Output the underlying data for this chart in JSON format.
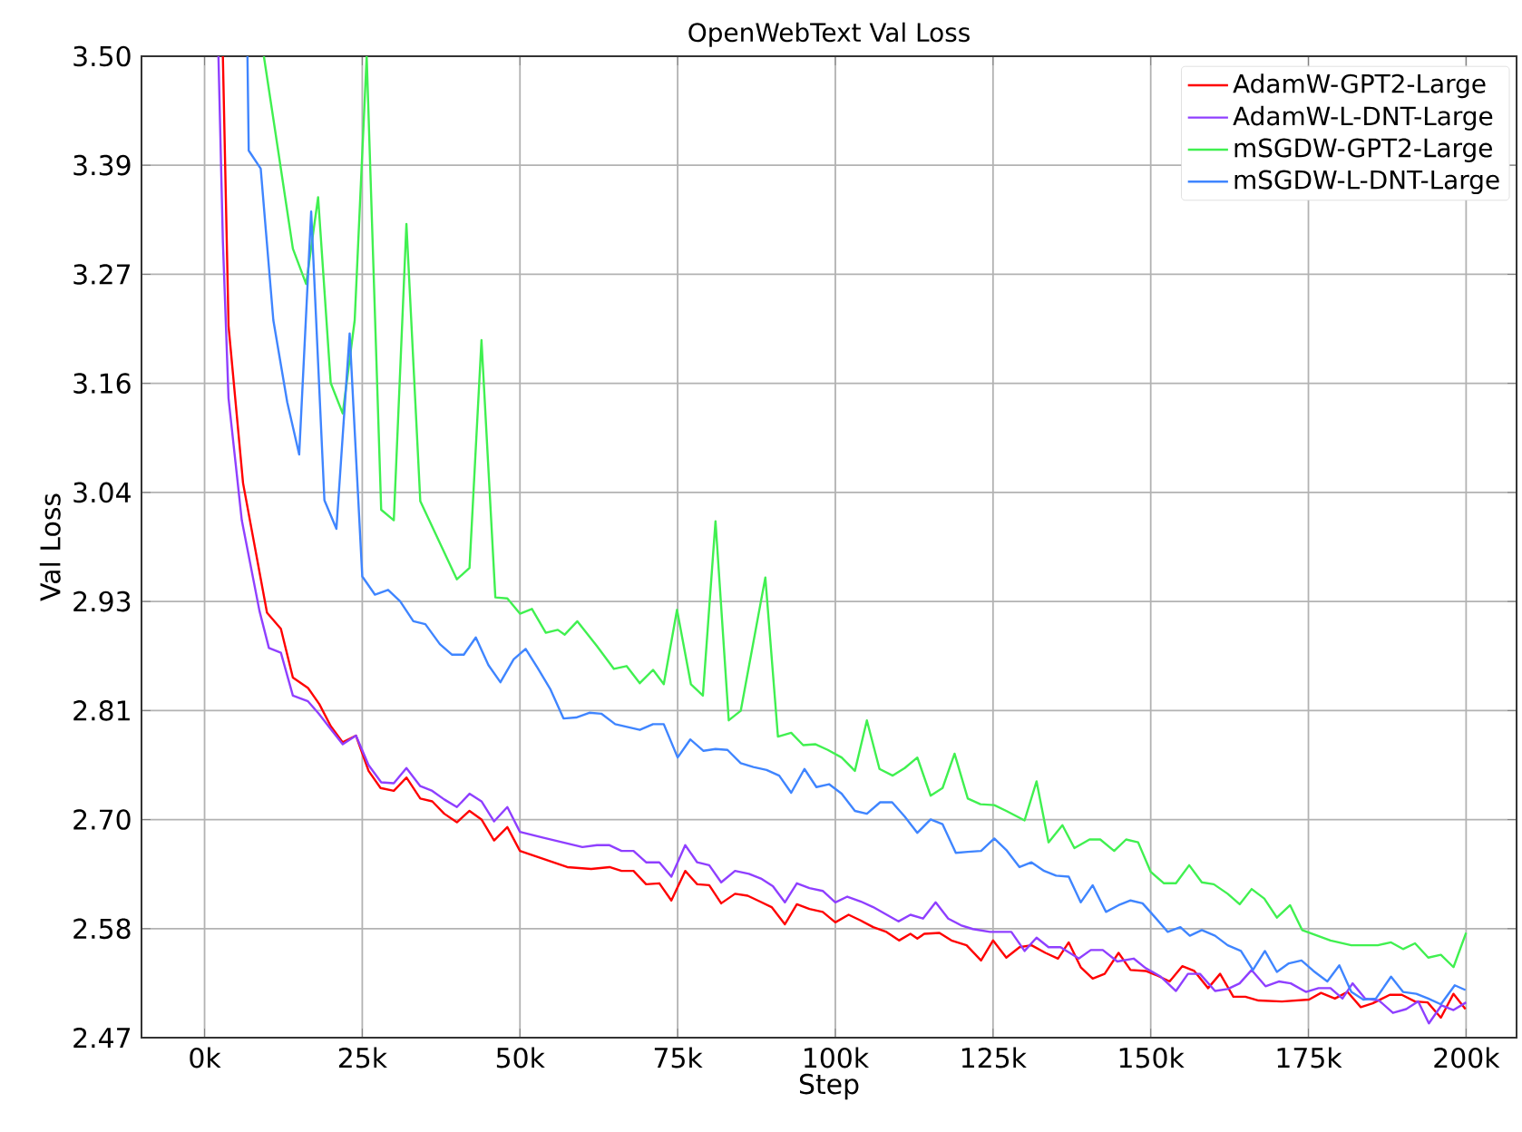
{
  "chart_data": {
    "type": "line",
    "title": "OpenWebText Val Loss",
    "xlabel": "Step",
    "ylabel": "Val Loss",
    "xlim": [
      -10000,
      208000
    ],
    "ylim": [
      2.47,
      3.5
    ],
    "xticks": [
      {
        "value": 0,
        "label": "0k"
      },
      {
        "value": 25000,
        "label": "25k"
      },
      {
        "value": 50000,
        "label": "50k"
      },
      {
        "value": 75000,
        "label": "75k"
      },
      {
        "value": 100000,
        "label": "100k"
      },
      {
        "value": 125000,
        "label": "125k"
      },
      {
        "value": 150000,
        "label": "150k"
      },
      {
        "value": 175000,
        "label": "175k"
      },
      {
        "value": 200000,
        "label": "200k"
      }
    ],
    "yticks": [
      2.47,
      {
        "value": 2.5844,
        "label": "2.58"
      },
      {
        "value": 2.6989,
        "label": "2.70"
      },
      {
        "value": 2.8133,
        "label": "2.81"
      },
      {
        "value": 2.9278,
        "label": "2.93"
      },
      {
        "value": 3.0422,
        "label": "3.04"
      },
      {
        "value": 3.1567,
        "label": "3.16"
      },
      {
        "value": 3.2711,
        "label": "3.27"
      },
      {
        "value": 3.3856,
        "label": "3.39"
      },
      {
        "value": 3.5,
        "label": "3.50"
      }
    ],
    "grid": true,
    "legend": "top right",
    "marker": "none",
    "line_style": "solid",
    "series": [
      {
        "name": "AdamW-GPT2-Large",
        "color": "#ff0000",
        "x": [
          2900,
          3800,
          6100,
          9900,
          12100,
          14000,
          16400,
          18200,
          20000,
          21900,
          24000,
          26000,
          27900,
          30000,
          32000,
          34200,
          36100,
          38000,
          40000,
          42000,
          43900,
          45900,
          48000,
          50000,
          57500,
          61300,
          64200,
          66100,
          68000,
          70000,
          72100,
          74000,
          76200,
          78100,
          80000,
          81900,
          84100,
          86100,
          88000,
          89900,
          92000,
          93900,
          95900,
          98000,
          100000,
          102100,
          104000,
          106000,
          108100,
          110100,
          111900,
          113000,
          114100,
          116500,
          118400,
          120800,
          123100,
          125000,
          127100,
          129200,
          131100,
          133300,
          135300,
          137000,
          138900,
          140800,
          142700,
          144900,
          146800,
          149200,
          151100,
          153000,
          155000,
          156900,
          159100,
          161000,
          163100,
          165000,
          167100,
          170800,
          175100,
          177000,
          179200,
          181200,
          183300,
          185200,
          187900,
          189800,
          191900,
          193900,
          196000,
          198000,
          199900
        ],
        "values": [
          3.5,
          3.217,
          3.052,
          2.916,
          2.899,
          2.848,
          2.837,
          2.82,
          2.797,
          2.78,
          2.787,
          2.75,
          2.732,
          2.729,
          2.743,
          2.721,
          2.718,
          2.705,
          2.696,
          2.708,
          2.699,
          2.677,
          2.691,
          2.666,
          2.649,
          2.647,
          2.649,
          2.645,
          2.645,
          2.631,
          2.632,
          2.614,
          2.645,
          2.631,
          2.63,
          2.611,
          2.621,
          2.619,
          2.613,
          2.607,
          2.589,
          2.61,
          2.605,
          2.602,
          2.591,
          2.599,
          2.593,
          2.586,
          2.581,
          2.572,
          2.579,
          2.574,
          2.579,
          2.58,
          2.572,
          2.567,
          2.551,
          2.572,
          2.554,
          2.565,
          2.567,
          2.559,
          2.553,
          2.57,
          2.544,
          2.532,
          2.537,
          2.559,
          2.541,
          2.54,
          2.535,
          2.529,
          2.545,
          2.54,
          2.522,
          2.537,
          2.513,
          2.513,
          2.509,
          2.508,
          2.51,
          2.517,
          2.511,
          2.518,
          2.502,
          2.506,
          2.515,
          2.515,
          2.508,
          2.507,
          2.491,
          2.516,
          2.5
        ]
      },
      {
        "name": "AdamW-L-DNT-Large",
        "color": "#8f3fff",
        "x": [
          2200,
          2900,
          3800,
          5900,
          8700,
          10200,
          12100,
          14000,
          16400,
          18100,
          20000,
          21900,
          24000,
          26000,
          28000,
          30000,
          32000,
          34200,
          36100,
          38000,
          40000,
          42000,
          43900,
          45900,
          48000,
          50000,
          53600,
          59900,
          62200,
          64200,
          66100,
          68000,
          70000,
          72100,
          74000,
          76200,
          78100,
          80000,
          81900,
          84100,
          86300,
          88200,
          90100,
          92000,
          93900,
          95900,
          98000,
          100000,
          101900,
          104000,
          106000,
          107900,
          110000,
          111900,
          113900,
          115900,
          117900,
          119900,
          121800,
          124500,
          127900,
          130000,
          131900,
          133800,
          135700,
          138600,
          140500,
          142400,
          144700,
          147300,
          149200,
          151600,
          154000,
          155900,
          157800,
          160200,
          162200,
          164100,
          166000,
          168200,
          170300,
          172200,
          174600,
          176600,
          178500,
          180400,
          182000,
          184000,
          186200,
          188400,
          190500,
          192400,
          194100,
          196100,
          198000,
          200000
        ],
        "values": [
          3.5,
          3.306,
          3.141,
          3.013,
          2.918,
          2.879,
          2.874,
          2.829,
          2.823,
          2.81,
          2.794,
          2.778,
          2.787,
          2.756,
          2.738,
          2.737,
          2.753,
          2.734,
          2.729,
          2.72,
          2.712,
          2.726,
          2.718,
          2.697,
          2.712,
          2.686,
          2.68,
          2.67,
          2.672,
          2.672,
          2.666,
          2.666,
          2.654,
          2.654,
          2.639,
          2.672,
          2.654,
          2.651,
          2.633,
          2.645,
          2.642,
          2.637,
          2.629,
          2.612,
          2.632,
          2.627,
          2.624,
          2.612,
          2.618,
          2.613,
          2.607,
          2.6,
          2.592,
          2.599,
          2.595,
          2.612,
          2.595,
          2.588,
          2.584,
          2.581,
          2.581,
          2.561,
          2.575,
          2.565,
          2.565,
          2.553,
          2.562,
          2.562,
          2.55,
          2.553,
          2.543,
          2.534,
          2.519,
          2.537,
          2.537,
          2.519,
          2.521,
          2.527,
          2.541,
          2.524,
          2.529,
          2.527,
          2.518,
          2.522,
          2.522,
          2.511,
          2.527,
          2.511,
          2.509,
          2.496,
          2.5,
          2.508,
          2.485,
          2.504,
          2.499,
          2.507
        ]
      },
      {
        "name": "mSGDW-GPT2-Large",
        "color": "#40f050",
        "x": [
          9400,
          10200,
          11800,
          14000,
          16100,
          18000,
          20000,
          21900,
          23800,
          25700,
          28000,
          30000,
          32000,
          34200,
          40000,
          42000,
          43900,
          46100,
          48000,
          50000,
          51900,
          54100,
          56000,
          57100,
          59100,
          62200,
          64900,
          66900,
          69000,
          71100,
          72800,
          74900,
          77100,
          79000,
          81000,
          83100,
          85000,
          88900,
          90900,
          93000,
          94900,
          96800,
          98800,
          101000,
          103100,
          105000,
          107000,
          109100,
          111000,
          113000,
          115100,
          117000,
          118900,
          121000,
          123000,
          125200,
          127100,
          130000,
          131900,
          133800,
          136000,
          137900,
          140300,
          142000,
          144200,
          146100,
          148000,
          150000,
          152100,
          154000,
          156100,
          158100,
          160000,
          162200,
          164100,
          166000,
          168000,
          170000,
          172100,
          174000,
          178500,
          181800,
          186000,
          188100,
          190000,
          191900,
          194000,
          196000,
          198000,
          200000
        ],
        "values": [
          3.5,
          3.465,
          3.395,
          3.298,
          3.261,
          3.352,
          3.157,
          3.125,
          3.223,
          3.5,
          3.024,
          3.013,
          3.324,
          3.033,
          2.951,
          2.963,
          3.202,
          2.932,
          2.931,
          2.915,
          2.92,
          2.895,
          2.898,
          2.893,
          2.907,
          2.881,
          2.857,
          2.86,
          2.842,
          2.856,
          2.841,
          2.919,
          2.841,
          2.829,
          3.012,
          2.803,
          2.813,
          2.953,
          2.786,
          2.79,
          2.777,
          2.778,
          2.772,
          2.764,
          2.75,
          2.803,
          2.752,
          2.745,
          2.753,
          2.764,
          2.724,
          2.732,
          2.768,
          2.721,
          2.715,
          2.714,
          2.708,
          2.698,
          2.739,
          2.675,
          2.693,
          2.669,
          2.678,
          2.678,
          2.666,
          2.678,
          2.675,
          2.644,
          2.632,
          2.632,
          2.651,
          2.633,
          2.631,
          2.621,
          2.61,
          2.626,
          2.616,
          2.596,
          2.609,
          2.583,
          2.572,
          2.567,
          2.567,
          2.57,
          2.563,
          2.569,
          2.554,
          2.557,
          2.544,
          2.58
        ]
      },
      {
        "name": "mSGDW-L-DNT-Large",
        "color": "#3f85ff",
        "x": [
          6800,
          7000,
          8900,
          10900,
          13100,
          15000,
          16900,
          19000,
          20900,
          23000,
          25000,
          27000,
          29100,
          31000,
          33100,
          35000,
          37300,
          39200,
          41100,
          43000,
          45000,
          46900,
          49000,
          50900,
          52800,
          54800,
          56900,
          58900,
          61000,
          62900,
          65100,
          69000,
          71100,
          72800,
          75000,
          77000,
          79100,
          81000,
          82900,
          85000,
          87000,
          89100,
          91100,
          93000,
          95100,
          97000,
          99000,
          101000,
          103100,
          105000,
          107100,
          109000,
          111000,
          113000,
          115100,
          117000,
          119100,
          121000,
          123100,
          125200,
          127100,
          129200,
          131100,
          133100,
          135000,
          137000,
          138900,
          140800,
          142900,
          144900,
          146800,
          148700,
          150600,
          152700,
          154700,
          156200,
          158100,
          160200,
          162200,
          164300,
          166200,
          168100,
          170000,
          171900,
          173900,
          175800,
          178000,
          179900,
          181800,
          183700,
          185700,
          188100,
          190000,
          192100,
          194000,
          196000,
          198200,
          199900
        ],
        "values": [
          3.5,
          3.401,
          3.382,
          3.223,
          3.137,
          3.082,
          3.337,
          3.034,
          3.004,
          3.209,
          2.954,
          2.935,
          2.94,
          2.928,
          2.907,
          2.904,
          2.883,
          2.872,
          2.872,
          2.89,
          2.861,
          2.843,
          2.867,
          2.878,
          2.858,
          2.836,
          2.805,
          2.806,
          2.811,
          2.81,
          2.799,
          2.793,
          2.799,
          2.799,
          2.764,
          2.783,
          2.771,
          2.773,
          2.772,
          2.758,
          2.754,
          2.751,
          2.745,
          2.727,
          2.752,
          2.733,
          2.736,
          2.726,
          2.708,
          2.705,
          2.717,
          2.717,
          2.702,
          2.685,
          2.699,
          2.694,
          2.664,
          2.665,
          2.666,
          2.679,
          2.667,
          2.649,
          2.654,
          2.645,
          2.64,
          2.639,
          2.612,
          2.63,
          2.602,
          2.609,
          2.614,
          2.611,
          2.597,
          2.581,
          2.586,
          2.577,
          2.583,
          2.577,
          2.567,
          2.561,
          2.541,
          2.561,
          2.539,
          2.548,
          2.551,
          2.54,
          2.529,
          2.546,
          2.518,
          2.51,
          2.511,
          2.534,
          2.518,
          2.516,
          2.511,
          2.505,
          2.525,
          2.52
        ]
      }
    ]
  }
}
